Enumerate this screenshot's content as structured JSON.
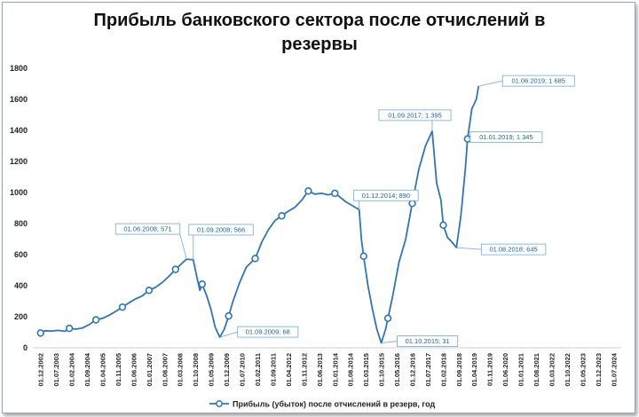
{
  "chart_data": {
    "type": "line",
    "title_line1": "Прибыль банковского сектора после отчислений в",
    "title_line2": "резервы",
    "ylim": [
      0,
      1800
    ],
    "yticks": [
      0,
      200,
      400,
      600,
      800,
      1000,
      1200,
      1400,
      1600,
      1800
    ],
    "xticks": [
      "01.12.2002",
      "01.07.2003",
      "01.02.2004",
      "01.09.2004",
      "01.04.2005",
      "01.11.2005",
      "01.06.2006",
      "01.01.2007",
      "01.08.2007",
      "01.03.2008",
      "01.10.2008",
      "01.05.2009",
      "01.12.2009",
      "01.07.2010",
      "01.02.2011",
      "01.09.2011",
      "01.04.2012",
      "01.11.2012",
      "01.06.2013",
      "01.01.2014",
      "01.08.2014",
      "01.03.2015",
      "01.10.2015",
      "01.05.2016",
      "01.12.2016",
      "01.07.2017",
      "01.02.2018",
      "01.09.2018",
      "01.04.2019",
      "01.11.2019",
      "01.06.2020",
      "01.01.2021",
      "01.08.2021",
      "01.03.2022",
      "01.10.2022",
      "01.05.2023",
      "01.12.2023",
      "01.07.2024"
    ],
    "line_color": "#2f75b5",
    "series": [
      {
        "name": "Прибыль (убыток) после отчислений в резерв, год",
        "points": [
          [
            "2002-12-01",
            95
          ],
          [
            "2003-02-01",
            110
          ],
          [
            "2003-05-01",
            108
          ],
          [
            "2003-08-01",
            112
          ],
          [
            "2003-11-01",
            106
          ],
          [
            "2004-01-01",
            125
          ],
          [
            "2004-04-01",
            120
          ],
          [
            "2004-07-01",
            128
          ],
          [
            "2004-10-01",
            150
          ],
          [
            "2005-01-01",
            180
          ],
          [
            "2005-04-01",
            190
          ],
          [
            "2005-07-01",
            210
          ],
          [
            "2005-10-01",
            235
          ],
          [
            "2006-01-01",
            262
          ],
          [
            "2006-04-01",
            290
          ],
          [
            "2006-07-01",
            315
          ],
          [
            "2006-10-01",
            335
          ],
          [
            "2007-01-01",
            370
          ],
          [
            "2007-04-01",
            390
          ],
          [
            "2007-07-01",
            420
          ],
          [
            "2007-10-01",
            460
          ],
          [
            "2008-01-01",
            505
          ],
          [
            "2008-04-01",
            545
          ],
          [
            "2008-06-01",
            571
          ],
          [
            "2008-09-01",
            566
          ],
          [
            "2008-11-01",
            430
          ],
          [
            "2008-12-01",
            370
          ],
          [
            "2009-01-01",
            410
          ],
          [
            "2009-03-01",
            340
          ],
          [
            "2009-05-01",
            250
          ],
          [
            "2009-07-01",
            130
          ],
          [
            "2009-09-01",
            68
          ],
          [
            "2009-11-01",
            120
          ],
          [
            "2010-01-01",
            205
          ],
          [
            "2010-03-01",
            300
          ],
          [
            "2010-06-01",
            420
          ],
          [
            "2010-09-01",
            520
          ],
          [
            "2011-01-01",
            575
          ],
          [
            "2011-04-01",
            680
          ],
          [
            "2011-07-01",
            760
          ],
          [
            "2011-10-01",
            820
          ],
          [
            "2012-01-01",
            850
          ],
          [
            "2012-04-01",
            880
          ],
          [
            "2012-07-01",
            905
          ],
          [
            "2012-10-01",
            950
          ],
          [
            "2013-01-01",
            1010
          ],
          [
            "2013-04-01",
            990
          ],
          [
            "2013-07-01",
            995
          ],
          [
            "2013-10-01",
            985
          ],
          [
            "2014-01-01",
            995
          ],
          [
            "2014-03-01",
            975
          ],
          [
            "2014-06-01",
            940
          ],
          [
            "2014-09-01",
            915
          ],
          [
            "2014-12-01",
            890
          ],
          [
            "2015-01-01",
            700
          ],
          [
            "2015-02-01",
            590
          ],
          [
            "2015-04-01",
            400
          ],
          [
            "2015-06-01",
            250
          ],
          [
            "2015-08-01",
            120
          ],
          [
            "2015-10-01",
            31
          ],
          [
            "2015-12-01",
            120
          ],
          [
            "2016-01-01",
            190
          ],
          [
            "2016-03-01",
            320
          ],
          [
            "2016-06-01",
            550
          ],
          [
            "2016-09-01",
            700
          ],
          [
            "2016-12-01",
            930
          ],
          [
            "2017-03-01",
            1150
          ],
          [
            "2017-06-01",
            1300
          ],
          [
            "2017-09-01",
            1395
          ],
          [
            "2017-11-01",
            1060
          ],
          [
            "2018-01-01",
            950
          ],
          [
            "2018-02-01",
            790
          ],
          [
            "2018-04-01",
            710
          ],
          [
            "2018-06-01",
            680
          ],
          [
            "2018-08-01",
            645
          ],
          [
            "2018-10-01",
            850
          ],
          [
            "2018-12-01",
            1150
          ],
          [
            "2019-01-01",
            1345
          ],
          [
            "2019-03-01",
            1540
          ],
          [
            "2019-05-01",
            1600
          ],
          [
            "2019-06-01",
            1685
          ]
        ]
      }
    ],
    "markers": [
      [
        "2002-12-01",
        95
      ],
      [
        "2004-01-01",
        125
      ],
      [
        "2005-01-01",
        180
      ],
      [
        "2006-01-01",
        262
      ],
      [
        "2007-01-01",
        370
      ],
      [
        "2008-01-01",
        505
      ],
      [
        "2009-01-01",
        410
      ],
      [
        "2010-01-01",
        205
      ],
      [
        "2011-01-01",
        575
      ],
      [
        "2012-01-01",
        850
      ],
      [
        "2013-01-01",
        1010
      ],
      [
        "2014-01-01",
        995
      ],
      [
        "2015-02-01",
        590
      ],
      [
        "2016-01-01",
        190
      ],
      [
        "2016-12-01",
        930
      ],
      [
        "2018-02-01",
        790
      ],
      [
        "2019-01-01",
        1345
      ]
    ],
    "annotations": [
      {
        "label": "01.06.2008; 571",
        "x": "2008-06-01",
        "y": 571
      },
      {
        "label": "01.09.2008; 566",
        "x": "2008-09-01",
        "y": 566
      },
      {
        "label": "01.09.2009; 68",
        "x": "2009-09-01",
        "y": 68
      },
      {
        "label": "01.12.2014; 890",
        "x": "2014-12-01",
        "y": 890
      },
      {
        "label": "01.10.2015; 31",
        "x": "2015-10-01",
        "y": 31
      },
      {
        "label": "01.09.2017; 1 395",
        "x": "2017-09-01",
        "y": 1395
      },
      {
        "label": "01.08.2018; 645",
        "x": "2018-08-01",
        "y": 645
      },
      {
        "label": "01.01.2019; 1 345",
        "x": "2019-01-01",
        "y": 1345
      },
      {
        "label": "01.06.2019; 1 685",
        "x": "2019-06-01",
        "y": 1685
      }
    ],
    "legend": {
      "label": "Прибыль (убыток) после отчислений в резерв, год",
      "position": "bottom"
    },
    "grid": false
  }
}
